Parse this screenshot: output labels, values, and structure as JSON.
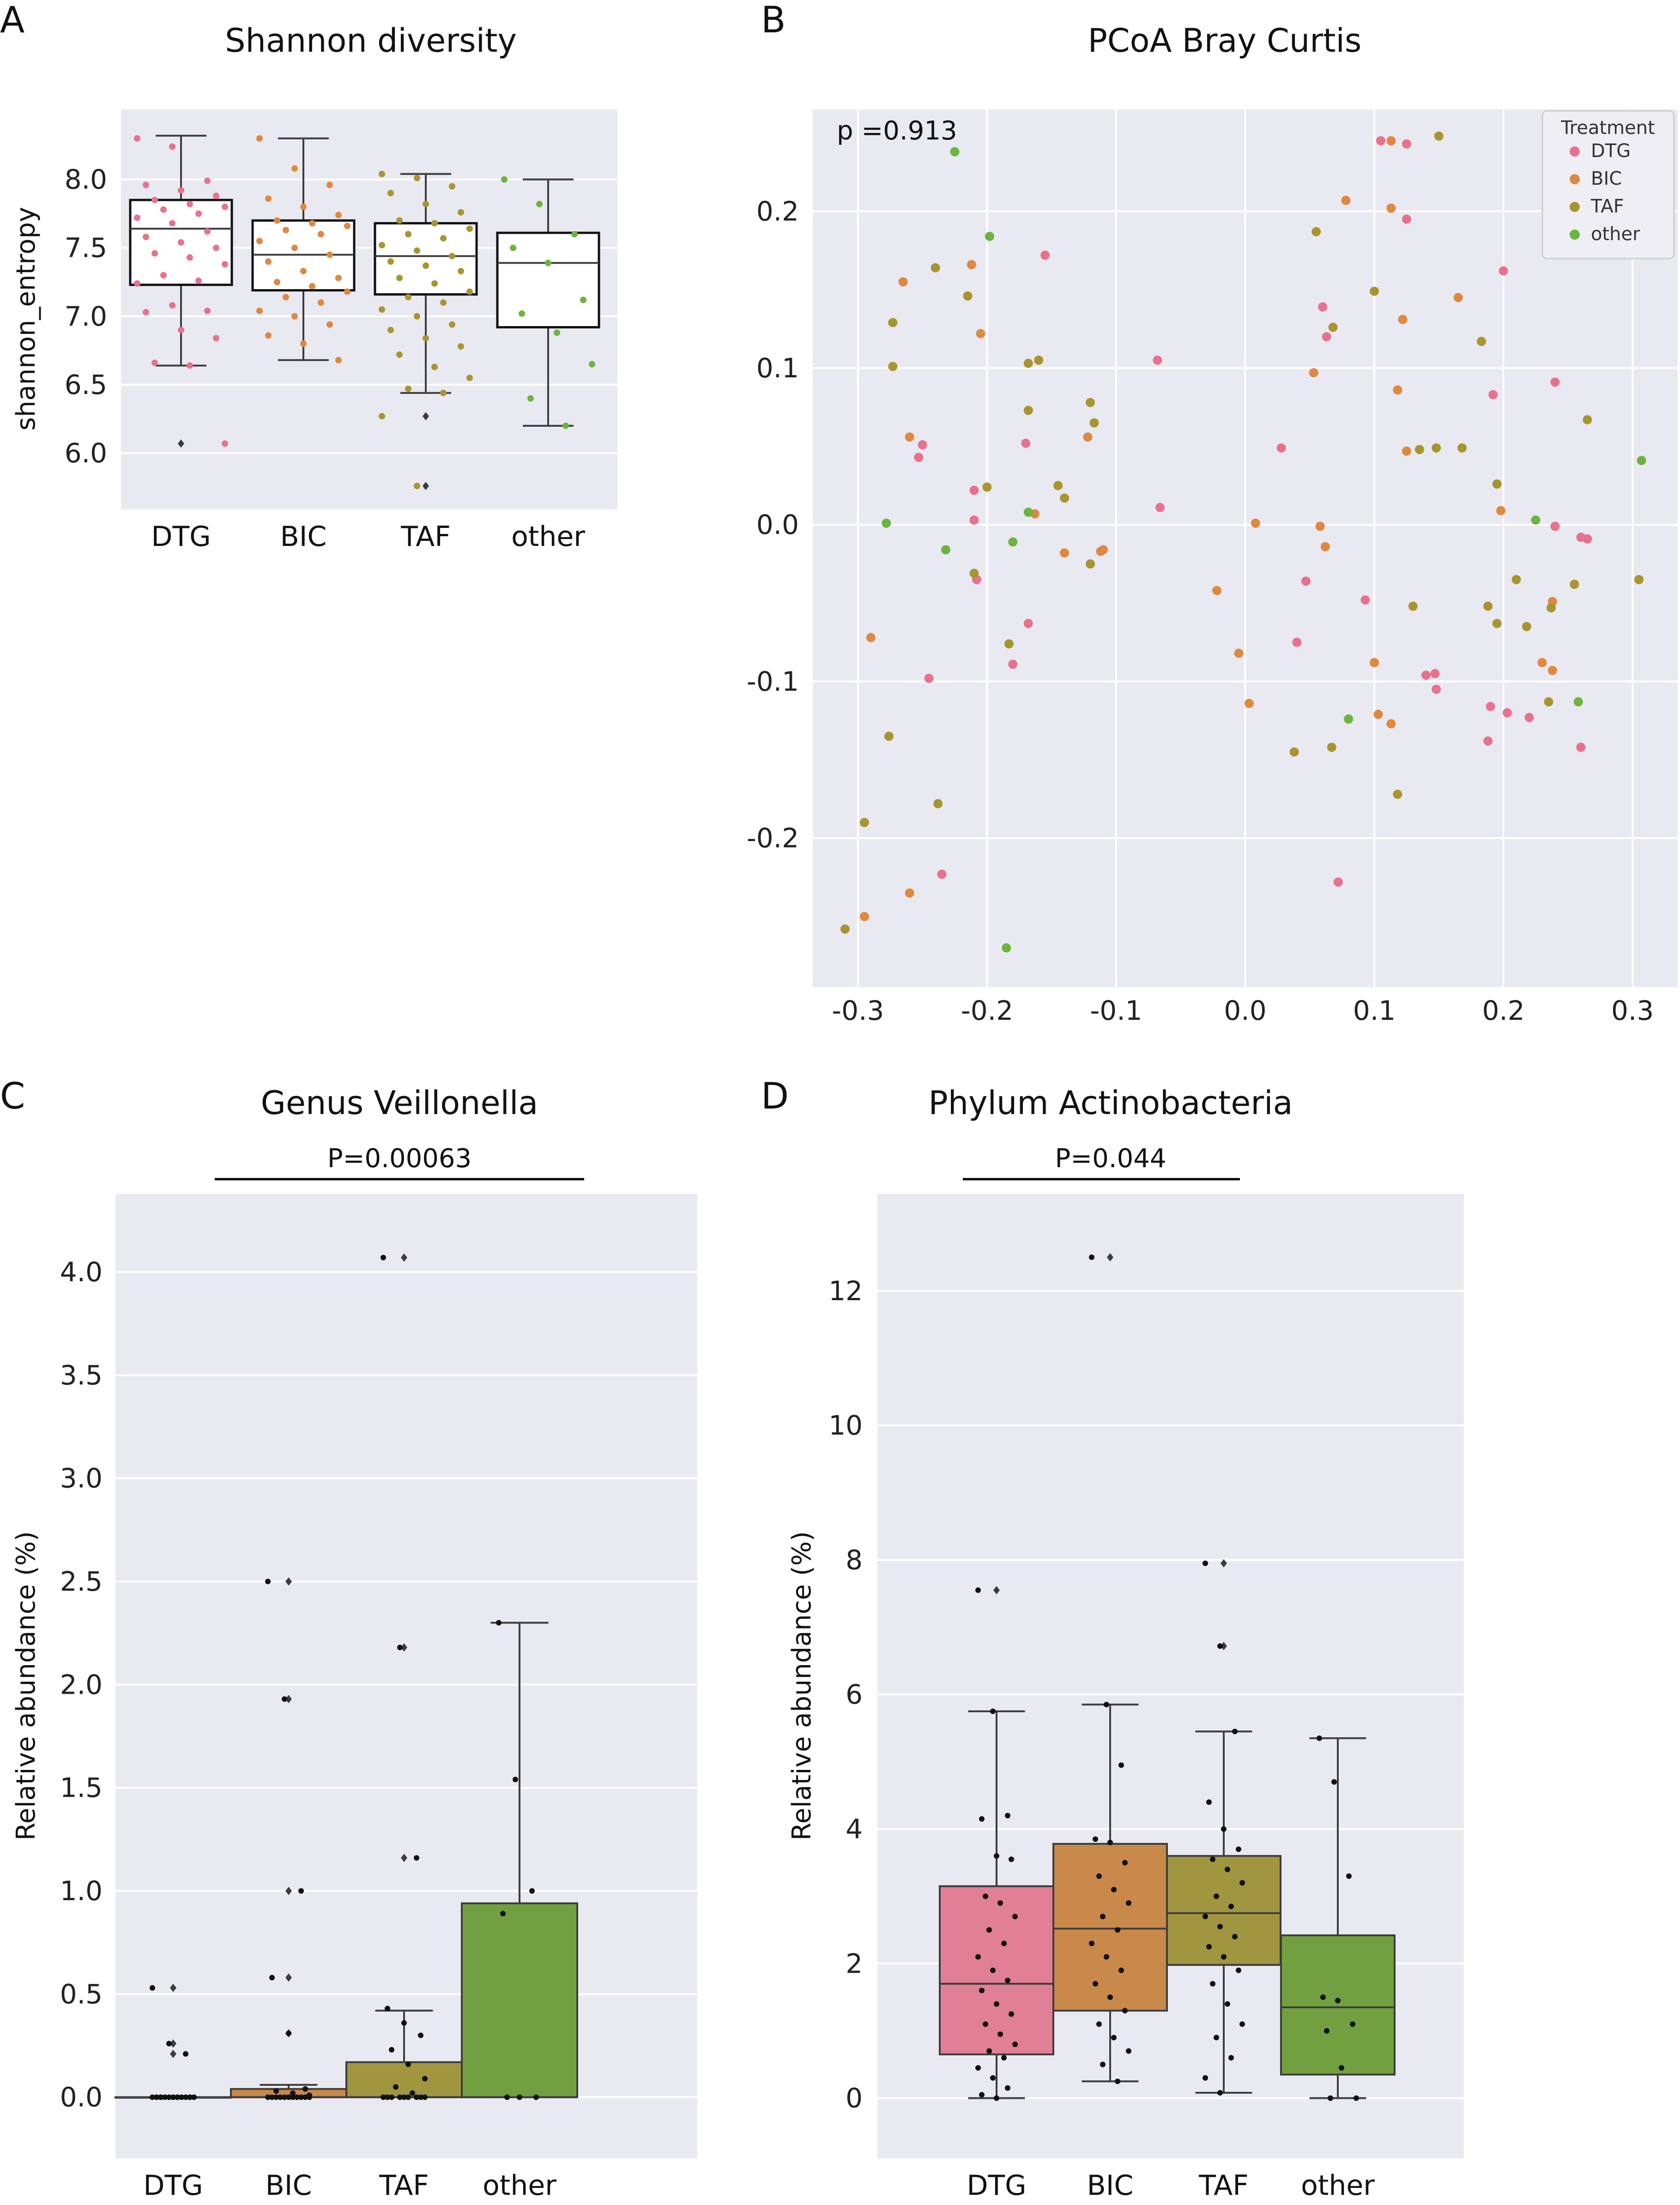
{
  "colors": {
    "DTG": "#e8718c",
    "BIC": "#de8840",
    "TAF": "#a89530",
    "other": "#6db33f",
    "DTG_box": "#e07f95",
    "BIC_box": "#c8894a",
    "TAF_box": "#a09640",
    "other_box": "#72a040"
  },
  "panels": {
    "A": "A",
    "B": "B",
    "C": "C",
    "D": "D"
  },
  "chart_data": [
    {
      "id": "A",
      "type": "box",
      "title": "Shannon diversity",
      "ylabel": "shannon_entropy",
      "categories": [
        "DTG",
        "BIC",
        "TAF",
        "other"
      ],
      "ylim": [
        5.7,
        8.4
      ],
      "yticks": [
        6.0,
        6.5,
        7.0,
        7.5,
        8.0
      ],
      "ytick_labels": [
        "6.0",
        "6.5",
        "7.0",
        "7.5",
        "8.0"
      ],
      "boxes": [
        {
          "q1": 7.23,
          "median": 7.64,
          "q3": 7.85,
          "whislo": 6.64,
          "whishi": 8.32,
          "fliers": [
            6.07
          ]
        },
        {
          "q1": 7.19,
          "median": 7.45,
          "q3": 7.7,
          "whislo": 6.68,
          "whishi": 8.3,
          "fliers": []
        },
        {
          "q1": 7.16,
          "median": 7.44,
          "q3": 7.68,
          "whislo": 6.44,
          "whishi": 8.04,
          "fliers": [
            6.27,
            5.76
          ]
        },
        {
          "q1": 6.92,
          "median": 7.39,
          "q3": 7.61,
          "whislo": 6.2,
          "whishi": 8.0,
          "fliers": []
        }
      ],
      "points": [
        [
          8.3,
          8.24,
          7.99,
          7.96,
          7.92,
          7.88,
          7.85,
          7.82,
          7.8,
          7.78,
          7.75,
          7.72,
          7.68,
          7.62,
          7.58,
          7.54,
          7.5,
          7.46,
          7.43,
          7.38,
          7.3,
          7.26,
          7.24,
          7.08,
          7.04,
          7.03,
          6.9,
          6.84,
          6.66,
          6.64,
          6.07
        ],
        [
          8.3,
          8.08,
          7.96,
          7.86,
          7.8,
          7.74,
          7.7,
          7.68,
          7.66,
          7.63,
          7.6,
          7.55,
          7.5,
          7.45,
          7.4,
          7.33,
          7.28,
          7.25,
          7.22,
          7.18,
          7.14,
          7.1,
          7.04,
          7.0,
          6.94,
          6.86,
          6.8,
          6.68
        ],
        [
          8.04,
          8.01,
          7.95,
          7.9,
          7.82,
          7.76,
          7.7,
          7.68,
          7.64,
          7.6,
          7.57,
          7.52,
          7.48,
          7.44,
          7.4,
          7.37,
          7.33,
          7.28,
          7.24,
          7.18,
          7.14,
          7.1,
          7.05,
          7.0,
          6.94,
          6.9,
          6.84,
          6.78,
          6.72,
          6.63,
          6.55,
          6.47,
          6.44,
          6.27,
          5.76
        ],
        [
          8.0,
          7.82,
          7.6,
          7.5,
          7.39,
          7.12,
          7.02,
          6.88,
          6.65,
          6.4,
          6.2
        ]
      ]
    },
    {
      "id": "B",
      "type": "scatter",
      "title": "PCoA Bray Curtis",
      "annotation": "p =0.913",
      "xlim": [
        -0.335,
        0.335
      ],
      "ylim": [
        -0.295,
        0.265
      ],
      "xticks": [
        -0.3,
        -0.2,
        -0.1,
        0.0,
        0.1,
        0.2,
        0.3
      ],
      "xtick_labels": [
        "-0.3",
        "-0.2",
        "-0.1",
        "0.0",
        "0.1",
        "0.2",
        "0.3"
      ],
      "yticks": [
        -0.2,
        -0.1,
        0.0,
        0.1,
        0.2
      ],
      "ytick_labels": [
        "-0.2",
        "-0.1",
        "0.0",
        "0.1",
        "0.2"
      ],
      "legend": {
        "title": "Treatment",
        "entries": [
          "DTG",
          "BIC",
          "TAF",
          "other"
        ],
        "position": "top-right"
      },
      "series": [
        {
          "name": "DTG",
          "points": [
            [
              -0.155,
              0.172
            ],
            [
              -0.068,
              0.105
            ],
            [
              -0.25,
              0.051
            ],
            [
              -0.253,
              0.043
            ],
            [
              -0.21,
              0.022
            ],
            [
              -0.21,
              0.003
            ],
            [
              -0.208,
              -0.035
            ],
            [
              -0.17,
              0.052
            ],
            [
              -0.168,
              -0.063
            ],
            [
              -0.18,
              -0.089
            ],
            [
              -0.245,
              -0.098
            ],
            [
              -0.235,
              -0.223
            ],
            [
              -0.066,
              0.011
            ],
            [
              0.028,
              0.049
            ],
            [
              0.06,
              0.139
            ],
            [
              0.063,
              0.12
            ],
            [
              0.105,
              0.245
            ],
            [
              0.125,
              0.243
            ],
            [
              0.125,
              0.195
            ],
            [
              0.2,
              0.162
            ],
            [
              0.192,
              0.083
            ],
            [
              0.24,
              0.091
            ],
            [
              0.26,
              -0.008
            ],
            [
              0.265,
              -0.009
            ],
            [
              0.24,
              -0.001
            ],
            [
              0.047,
              -0.036
            ],
            [
              0.04,
              -0.075
            ],
            [
              0.093,
              -0.048
            ],
            [
              0.14,
              -0.096
            ],
            [
              0.147,
              -0.095
            ],
            [
              0.148,
              -0.105
            ],
            [
              0.19,
              -0.116
            ],
            [
              0.203,
              -0.12
            ],
            [
              0.22,
              -0.123
            ],
            [
              0.188,
              -0.138
            ],
            [
              0.26,
              -0.142
            ],
            [
              0.072,
              -0.228
            ]
          ]
        },
        {
          "name": "BIC",
          "points": [
            [
              -0.265,
              0.155
            ],
            [
              -0.212,
              0.166
            ],
            [
              -0.205,
              0.122
            ],
            [
              -0.26,
              0.056
            ],
            [
              -0.122,
              0.056
            ],
            [
              -0.163,
              0.007
            ],
            [
              -0.14,
              -0.018
            ],
            [
              -0.11,
              -0.016
            ],
            [
              -0.112,
              -0.017
            ],
            [
              -0.29,
              -0.072
            ],
            [
              -0.295,
              -0.25
            ],
            [
              -0.26,
              -0.235
            ],
            [
              0.078,
              0.207
            ],
            [
              0.113,
              0.202
            ],
            [
              0.113,
              0.245
            ],
            [
              0.118,
              0.086
            ],
            [
              0.122,
              0.131
            ],
            [
              0.125,
              0.047
            ],
            [
              0.053,
              0.097
            ],
            [
              0.058,
              -0.001
            ],
            [
              0.008,
              0.001
            ],
            [
              0.062,
              -0.014
            ],
            [
              0.165,
              0.145
            ],
            [
              0.198,
              0.009
            ],
            [
              0.238,
              -0.049
            ],
            [
              -0.022,
              -0.042
            ],
            [
              -0.005,
              -0.082
            ],
            [
              0.003,
              -0.114
            ],
            [
              0.1,
              -0.088
            ],
            [
              0.103,
              -0.121
            ],
            [
              0.113,
              -0.127
            ],
            [
              0.23,
              -0.088
            ],
            [
              0.238,
              -0.093
            ]
          ]
        },
        {
          "name": "TAF",
          "points": [
            [
              -0.273,
              0.129
            ],
            [
              -0.273,
              0.101
            ],
            [
              -0.24,
              0.164
            ],
            [
              -0.215,
              0.146
            ],
            [
              -0.168,
              0.103
            ],
            [
              -0.16,
              0.105
            ],
            [
              -0.168,
              0.073
            ],
            [
              -0.2,
              0.024
            ],
            [
              -0.12,
              0.078
            ],
            [
              -0.117,
              0.065
            ],
            [
              -0.145,
              0.025
            ],
            [
              -0.14,
              0.017
            ],
            [
              -0.12,
              -0.025
            ],
            [
              -0.21,
              -0.031
            ],
            [
              -0.183,
              -0.076
            ],
            [
              -0.276,
              -0.135
            ],
            [
              -0.295,
              -0.19
            ],
            [
              -0.238,
              -0.178
            ],
            [
              -0.31,
              -0.258
            ],
            [
              0.055,
              0.187
            ],
            [
              0.068,
              0.126
            ],
            [
              0.1,
              0.149
            ],
            [
              0.15,
              0.248
            ],
            [
              0.148,
              0.049
            ],
            [
              0.183,
              0.117
            ],
            [
              0.168,
              0.049
            ],
            [
              0.195,
              0.026
            ],
            [
              0.135,
              0.048
            ],
            [
              0.265,
              0.067
            ],
            [
              0.188,
              -0.052
            ],
            [
              0.195,
              -0.063
            ],
            [
              0.21,
              -0.035
            ],
            [
              0.218,
              -0.065
            ],
            [
              0.237,
              -0.053
            ],
            [
              0.255,
              -0.038
            ],
            [
              0.13,
              -0.052
            ],
            [
              0.067,
              -0.142
            ],
            [
              0.038,
              -0.145
            ],
            [
              0.118,
              -0.172
            ],
            [
              0.235,
              -0.113
            ],
            [
              0.305,
              -0.035
            ]
          ]
        },
        {
          "name": "other",
          "points": [
            [
              -0.225,
              0.238
            ],
            [
              -0.198,
              0.184
            ],
            [
              -0.278,
              0.001
            ],
            [
              -0.232,
              -0.016
            ],
            [
              -0.18,
              -0.011
            ],
            [
              -0.168,
              0.008
            ],
            [
              -0.185,
              -0.27
            ],
            [
              0.08,
              -0.124
            ],
            [
              0.225,
              0.003
            ],
            [
              0.258,
              -0.113
            ],
            [
              0.307,
              0.041
            ]
          ]
        }
      ]
    },
    {
      "id": "C",
      "type": "box",
      "title": "Genus Veillonella",
      "ylabel": "Relative abundance (%)",
      "annotation": "P=0.00063",
      "categories": [
        "DTG",
        "BIC",
        "TAF",
        "other"
      ],
      "ylim": [
        -0.2,
        4.3
      ],
      "yticks": [
        0.0,
        0.5,
        1.0,
        1.5,
        2.0,
        2.5,
        3.0,
        3.5,
        4.0
      ],
      "ytick_labels": [
        "0.0",
        "0.5",
        "1.0",
        "1.5",
        "2.0",
        "2.5",
        "3.0",
        "3.5",
        "4.0"
      ],
      "boxes": [
        {
          "q1": 0.0,
          "median": 0.0,
          "q3": 0.0,
          "whislo": 0.0,
          "whishi": 0.0,
          "fliers": [
            0.53,
            0.26,
            0.21
          ]
        },
        {
          "q1": 0.0,
          "median": 0.0,
          "q3": 0.04,
          "whislo": 0.0,
          "whishi": 0.06,
          "fliers": [
            2.5,
            1.93,
            1.0,
            0.58,
            0.31
          ]
        },
        {
          "q1": 0.0,
          "median": 0.0,
          "q3": 0.17,
          "whislo": 0.0,
          "whishi": 0.42,
          "fliers": [
            4.07,
            2.18,
            1.16
          ]
        },
        {
          "q1": 0.0,
          "median": 0.0,
          "q3": 0.94,
          "whislo": 0.0,
          "whishi": 2.3,
          "fliers": []
        }
      ],
      "points": [
        [
          0.53,
          0.26,
          0.21,
          0.0,
          0.0,
          0.0,
          0.0,
          0.0,
          0.0,
          0.0,
          0.0,
          0.0,
          0.0,
          0.0,
          0.0,
          0.0,
          0.0,
          0.0,
          0.0,
          0.0
        ],
        [
          2.5,
          1.93,
          1.0,
          0.58,
          0.31,
          0.04,
          0.03,
          0.02,
          0.01,
          0.0,
          0.0,
          0.0,
          0.0,
          0.0,
          0.0,
          0.0,
          0.0,
          0.0,
          0.0,
          0.0
        ],
        [
          4.07,
          2.18,
          1.16,
          0.43,
          0.36,
          0.3,
          0.23,
          0.16,
          0.09,
          0.05,
          0.02,
          0.0,
          0.0,
          0.0,
          0.0,
          0.0,
          0.0,
          0.0,
          0.0,
          0.0
        ],
        [
          2.3,
          1.54,
          1.0,
          0.89,
          0.0,
          0.0,
          0.0
        ]
      ]
    },
    {
      "id": "D",
      "type": "box",
      "title": "Phylum Actinobacteria",
      "ylabel": "Relative abundance (%)",
      "annotation": "P=0.044",
      "categories": [
        "DTG",
        "BIC",
        "TAF",
        "other"
      ],
      "ylim": [
        -0.6,
        13.2
      ],
      "yticks": [
        0,
        2,
        4,
        6,
        8,
        10,
        12
      ],
      "ytick_labels": [
        "0",
        "2",
        "4",
        "6",
        "8",
        "10",
        "12"
      ],
      "boxes": [
        {
          "q1": 0.65,
          "median": 1.7,
          "q3": 3.15,
          "whislo": 0.0,
          "whishi": 5.75,
          "fliers": [
            7.55
          ]
        },
        {
          "q1": 1.3,
          "median": 2.52,
          "q3": 3.78,
          "whislo": 0.25,
          "whishi": 5.85,
          "fliers": [
            12.5
          ]
        },
        {
          "q1": 1.98,
          "median": 2.75,
          "q3": 3.6,
          "whislo": 0.08,
          "whishi": 5.45,
          "fliers": [
            7.95,
            6.72
          ]
        },
        {
          "q1": 0.35,
          "median": 1.35,
          "q3": 2.42,
          "whislo": 0.0,
          "whishi": 5.35,
          "fliers": []
        }
      ],
      "points": [
        [
          7.55,
          5.75,
          4.2,
          4.15,
          3.6,
          3.55,
          3.0,
          2.9,
          2.7,
          2.5,
          2.3,
          2.1,
          1.9,
          1.75,
          1.6,
          1.4,
          1.25,
          1.1,
          0.95,
          0.8,
          0.7,
          0.6,
          0.45,
          0.3,
          0.15,
          0.05,
          0.0
        ],
        [
          12.5,
          5.85,
          4.95,
          3.85,
          3.8,
          3.5,
          3.3,
          3.1,
          2.9,
          2.7,
          2.5,
          2.3,
          2.1,
          1.9,
          1.7,
          1.5,
          1.3,
          1.1,
          0.9,
          0.7,
          0.5,
          0.25
        ],
        [
          7.95,
          6.72,
          5.45,
          4.4,
          4.0,
          3.7,
          3.55,
          3.4,
          3.2,
          3.0,
          2.85,
          2.7,
          2.55,
          2.4,
          2.25,
          2.1,
          1.9,
          1.7,
          1.4,
          1.1,
          0.9,
          0.6,
          0.3,
          0.08
        ],
        [
          5.35,
          4.7,
          3.3,
          1.5,
          1.45,
          1.1,
          1.0,
          0.45,
          0.0,
          0.0
        ]
      ]
    }
  ]
}
